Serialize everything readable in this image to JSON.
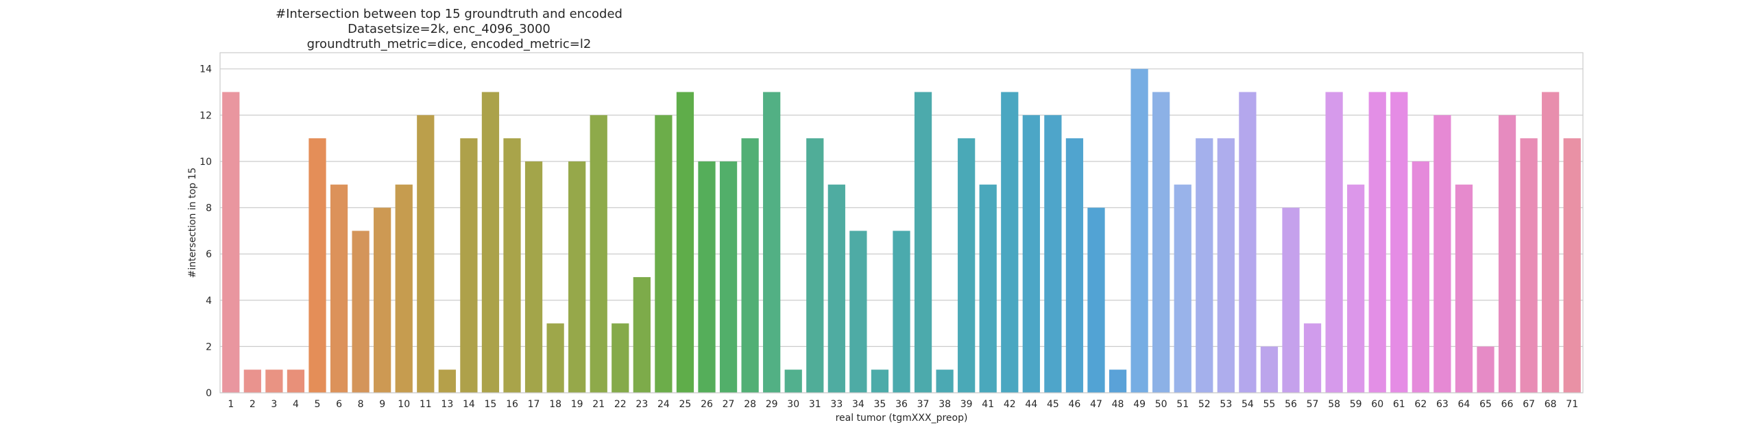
{
  "chart_data": {
    "type": "bar",
    "title_lines": [
      "#Intersection between top 15 groundtruth and encoded",
      "Datasetsize=2k, enc_4096_3000",
      "groundtruth_metric=dice, encoded_metric=l2"
    ],
    "xlabel": "real tumor (tgmXXX_preop)",
    "ylabel": "#intersection in top 15",
    "ylim": [
      0,
      14.7
    ],
    "yticks": [
      0,
      2,
      4,
      6,
      8,
      10,
      12,
      14
    ],
    "grid": true,
    "legend": "none",
    "categories": [
      "1",
      "2",
      "3",
      "4",
      "5",
      "6",
      "8",
      "9",
      "10",
      "11",
      "13",
      "14",
      "15",
      "16",
      "17",
      "18",
      "19",
      "21",
      "22",
      "23",
      "24",
      "25",
      "26",
      "27",
      "28",
      "29",
      "30",
      "31",
      "33",
      "34",
      "35",
      "36",
      "37",
      "38",
      "39",
      "41",
      "42",
      "44",
      "45",
      "46",
      "47",
      "48",
      "49",
      "50",
      "51",
      "52",
      "53",
      "54",
      "55",
      "56",
      "57",
      "58",
      "59",
      "60",
      "61",
      "62",
      "63",
      "64",
      "65",
      "66",
      "67",
      "68",
      "71"
    ],
    "values": [
      13,
      1,
      1,
      1,
      11,
      9,
      7,
      8,
      9,
      12,
      1,
      11,
      13,
      11,
      10,
      3,
      10,
      12,
      3,
      5,
      12,
      13,
      10,
      10,
      11,
      13,
      1,
      11,
      9,
      7,
      1,
      7,
      13,
      1,
      11,
      9,
      13,
      12,
      12,
      11,
      8,
      1,
      14,
      13,
      9,
      11,
      11,
      13,
      2,
      8,
      3,
      13,
      9,
      13,
      13,
      10,
      12,
      9,
      2,
      12,
      11,
      13,
      11
    ],
    "colors": [
      "#e9969f",
      "#e9938e",
      "#e99383",
      "#e89079",
      "#e48e58",
      "#dc925a",
      "#d4955a",
      "#cd9953",
      "#c69c4f",
      "#bb9f4b",
      "#b5a04a",
      "#aea14a",
      "#aba24a",
      "#a9a44a",
      "#a3a54a",
      "#9ea74a",
      "#96a84a",
      "#8eaa4a",
      "#85aa4a",
      "#7dab4a",
      "#6cad4a",
      "#5fad4a",
      "#55ae5a",
      "#52af6a",
      "#52af75",
      "#52b084",
      "#52b08e",
      "#50ad98",
      "#4faca1",
      "#4eaba5",
      "#4caba9",
      "#4baaad",
      "#4caaac",
      "#4ba9b3",
      "#4aa9b7",
      "#4aa8bc",
      "#4aa7c1",
      "#4ca6c6",
      "#4ea5ca",
      "#50a4cf",
      "#52a3d4",
      "#5aa2d8",
      "#76ade3",
      "#8cb1e6",
      "#99b3ea",
      "#a4b0ec",
      "#aeaded",
      "#b4a7ed",
      "#bca5ec",
      "#c5a1ec",
      "#d09cec",
      "#d69aeb",
      "#dc97ea",
      "#e38fe6",
      "#e58ce5",
      "#e58adb",
      "#e689d4",
      "#e68acd",
      "#e68bc6",
      "#e68bbf",
      "#e88db5",
      "#e88ead",
      "#e991a5"
    ]
  }
}
